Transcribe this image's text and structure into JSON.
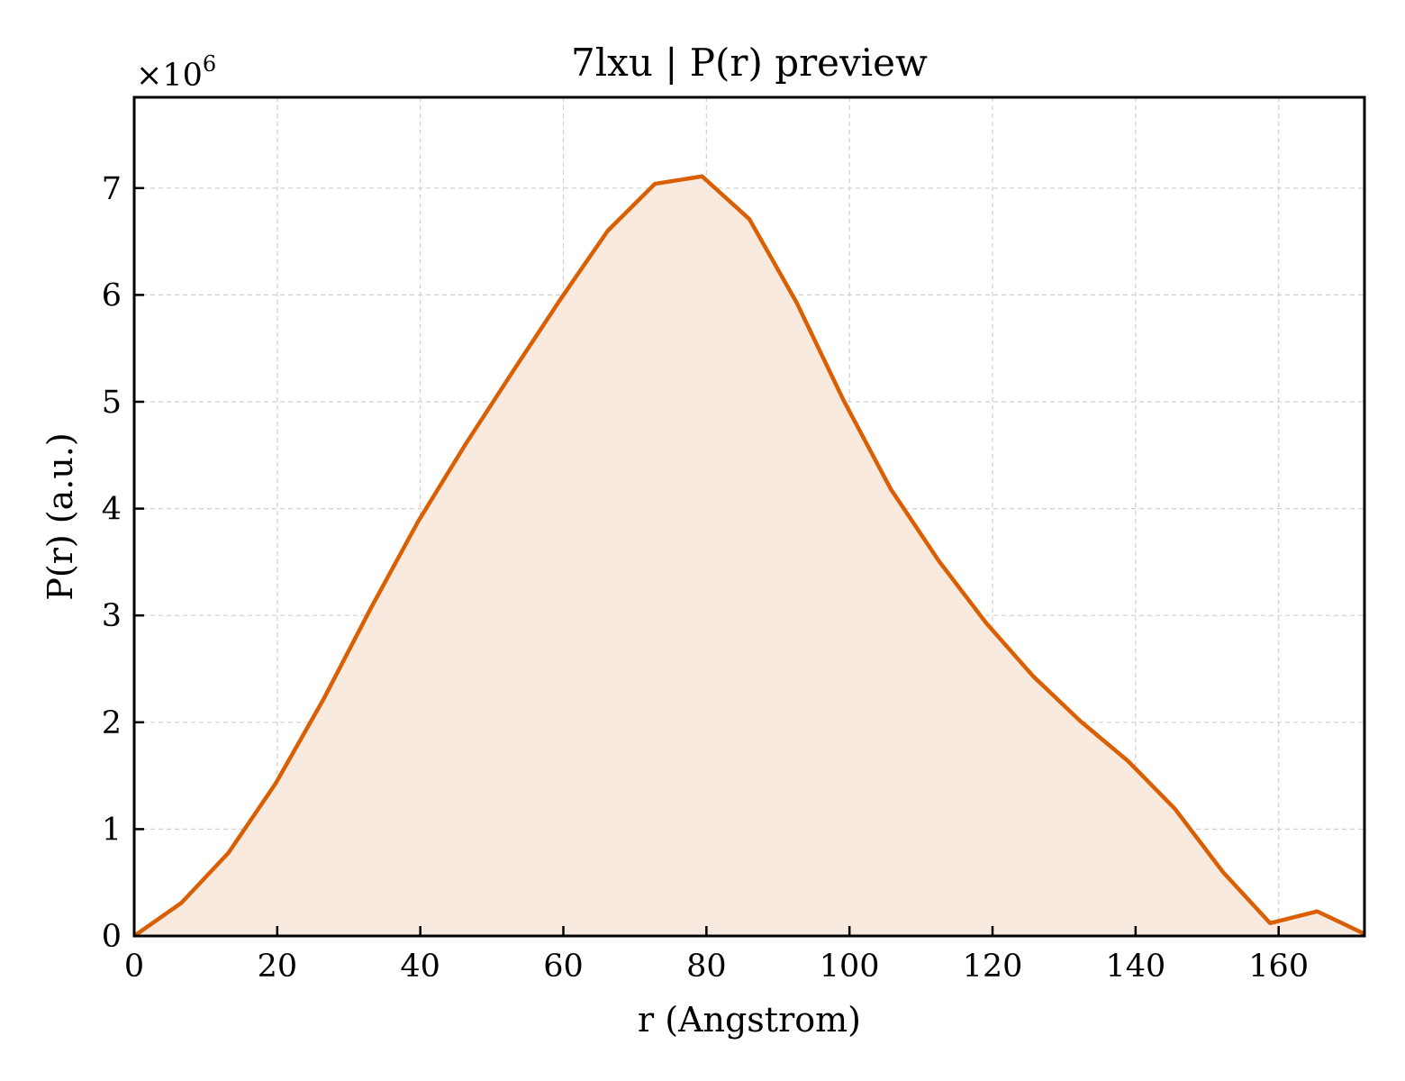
{
  "chart_data": {
    "type": "area",
    "title": "7lxu | P(r) preview",
    "xlabel": "r (Angstrom)",
    "ylabel": "P(r) (a.u.)",
    "y_multiplier_base": "×10",
    "y_multiplier_exp": "6",
    "xlim": [
      0,
      172
    ],
    "ylim": [
      0,
      7.85
    ],
    "xticks": [
      0,
      20,
      40,
      60,
      80,
      100,
      120,
      140,
      160
    ],
    "yticks": [
      0,
      1,
      2,
      3,
      4,
      5,
      6,
      7
    ],
    "grid": true,
    "color": "#d95f02",
    "fill_color": "#f9eadf",
    "series": [
      {
        "x": [
          0,
          6.6,
          13.2,
          19.8,
          26.5,
          33.1,
          39.7,
          46.3,
          52.9,
          59.5,
          66.2,
          72.8,
          79.4,
          86.0,
          92.6,
          99.2,
          105.8,
          112.5,
          119.1,
          125.7,
          132.3,
          138.9,
          145.5,
          152.2,
          158.8,
          165.4,
          172.0
        ],
        "y": [
          0,
          0.31,
          0.78,
          1.43,
          2.22,
          3.07,
          3.88,
          4.6,
          5.28,
          5.95,
          6.6,
          7.04,
          7.11,
          6.71,
          5.93,
          5.01,
          4.18,
          3.51,
          2.93,
          2.43,
          2.01,
          1.64,
          1.19,
          0.6,
          0.12,
          0.23,
          0.02
        ]
      }
    ]
  }
}
